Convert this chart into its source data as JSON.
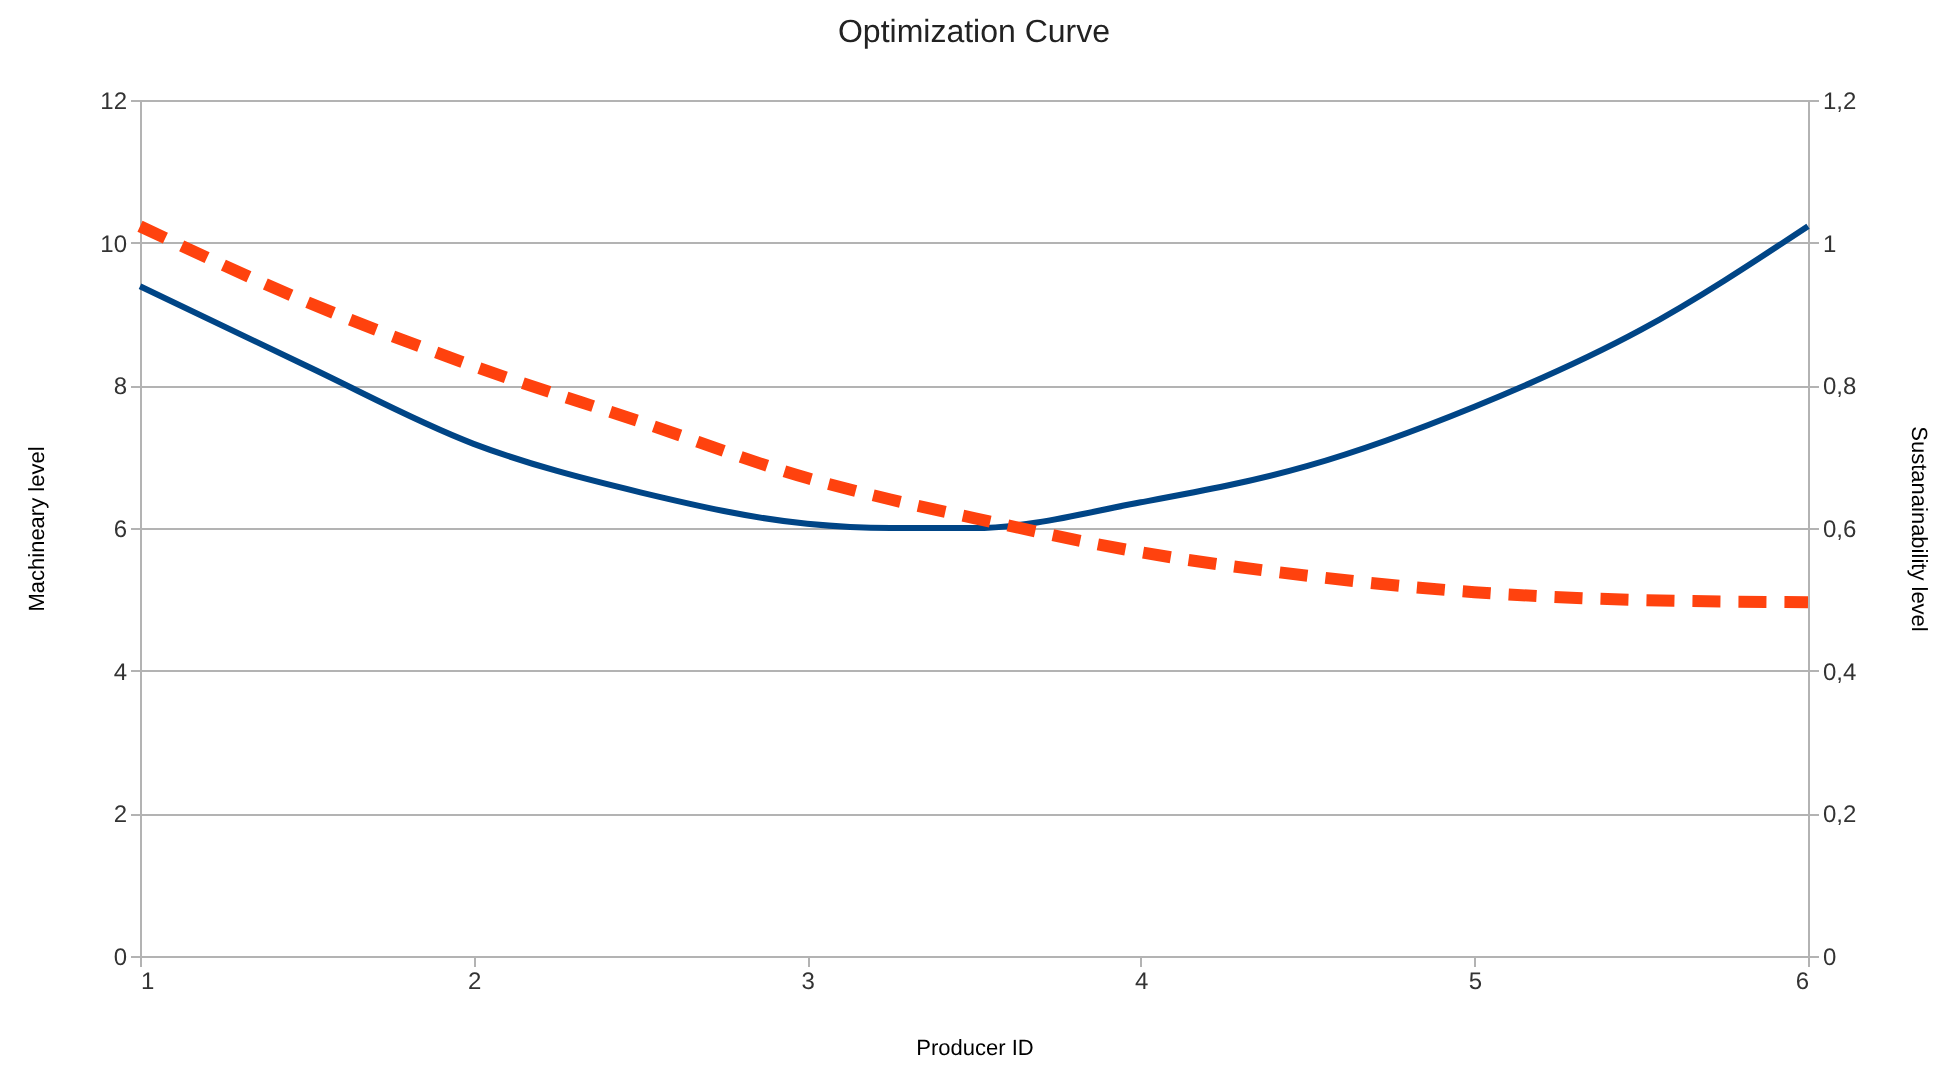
{
  "chart_data": {
    "type": "line",
    "title": "Optimization Curve",
    "xlabel": "Producer ID",
    "ylabel": "Machineary level",
    "y2label": "Sustanainability level",
    "x": [
      1,
      1.5,
      2,
      2.5,
      3,
      3.25,
      3.5,
      4,
      4.5,
      5,
      5.5,
      6
    ],
    "series": [
      {
        "color": "#004586",
        "line_style": "solid",
        "values": [
          9.39,
          8.27,
          7.18,
          6.5,
          6.06,
          6.0,
          6.0,
          6.36,
          6.87,
          7.7,
          8.78,
          10.23
        ]
      },
      {
        "color": "#ff420e",
        "line_style": "dashed",
        "axis": "y2",
        "values": [
          1.023,
          0.917,
          0.827,
          0.749,
          0.67,
          0.64,
          0.614,
          0.566,
          0.533,
          0.51,
          0.499,
          0.496
        ]
      }
    ],
    "xlim": [
      1,
      6
    ],
    "xticks": [
      1,
      2,
      3,
      4,
      5,
      6
    ],
    "ylim": [
      0,
      12
    ],
    "yticks": [
      0,
      2,
      4,
      6,
      8,
      10,
      12
    ],
    "y2lim": [
      0,
      1.2
    ],
    "y2ticks": [
      0,
      {
        "value": 0.2,
        "label": "0,2"
      },
      {
        "value": 0.4,
        "label": "0,4"
      },
      {
        "value": 0.6,
        "label": "0,6"
      },
      {
        "value": 0.8,
        "label": "0,8"
      },
      1,
      {
        "value": 1.2,
        "label": "1,2"
      }
    ],
    "grid": "y",
    "marker": "none"
  }
}
